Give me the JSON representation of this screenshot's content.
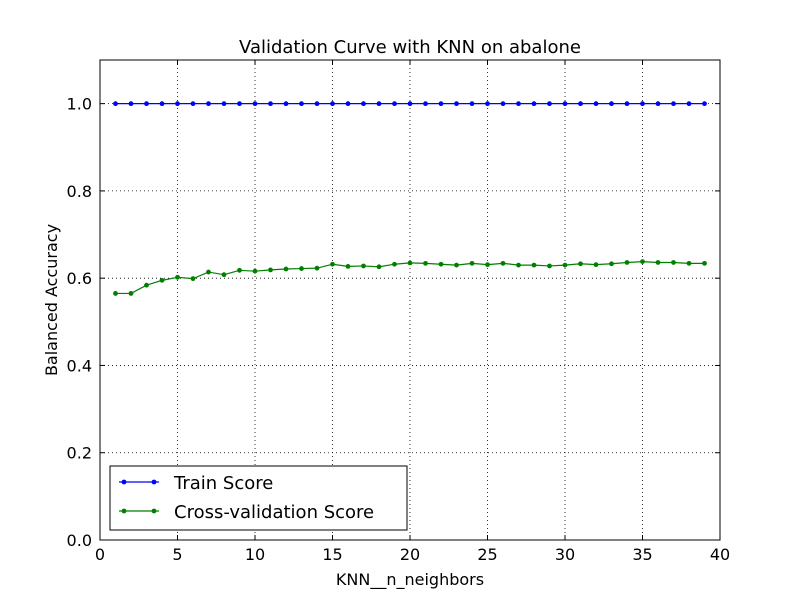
{
  "chart_data": {
    "type": "line",
    "title": "Validation Curve with KNN on abalone",
    "xlabel": "KNN__n_neighbors",
    "ylabel": "Balanced Accuracy",
    "xlim": [
      0,
      40
    ],
    "ylim": [
      0.0,
      1.1
    ],
    "x_ticks": [
      0,
      5,
      10,
      15,
      20,
      25,
      30,
      35,
      40
    ],
    "x_tick_labels": [
      "0",
      "5",
      "10",
      "15",
      "20",
      "25",
      "30",
      "35",
      "40"
    ],
    "y_ticks": [
      0.0,
      0.2,
      0.4,
      0.6,
      0.8,
      1.0
    ],
    "y_tick_labels": [
      "0.0",
      "0.2",
      "0.4",
      "0.6",
      "0.8",
      "1.0"
    ],
    "grid": true,
    "legend_position": "lower-left",
    "x": [
      1,
      2,
      3,
      4,
      5,
      6,
      7,
      8,
      9,
      10,
      11,
      12,
      13,
      14,
      15,
      16,
      17,
      18,
      19,
      20,
      21,
      22,
      23,
      24,
      25,
      26,
      27,
      28,
      29,
      30,
      31,
      32,
      33,
      34,
      35,
      36,
      37,
      38,
      39
    ],
    "series": [
      {
        "name": "Train Score",
        "color": "#0000ff",
        "values": [
          1.0,
          1.0,
          1.0,
          1.0,
          1.0,
          1.0,
          1.0,
          1.0,
          1.0,
          1.0,
          1.0,
          1.0,
          1.0,
          1.0,
          1.0,
          1.0,
          1.0,
          1.0,
          1.0,
          1.0,
          1.0,
          1.0,
          1.0,
          1.0,
          1.0,
          1.0,
          1.0,
          1.0,
          1.0,
          1.0,
          1.0,
          1.0,
          1.0,
          1.0,
          1.0,
          1.0,
          1.0,
          1.0,
          1.0
        ]
      },
      {
        "name": "Cross-validation Score",
        "color": "#008000",
        "values": [
          0.565,
          0.565,
          0.584,
          0.595,
          0.602,
          0.599,
          0.614,
          0.608,
          0.618,
          0.616,
          0.619,
          0.621,
          0.622,
          0.623,
          0.632,
          0.627,
          0.628,
          0.626,
          0.632,
          0.635,
          0.634,
          0.632,
          0.63,
          0.634,
          0.631,
          0.634,
          0.63,
          0.63,
          0.628,
          0.63,
          0.633,
          0.631,
          0.633,
          0.636,
          0.638,
          0.636,
          0.636,
          0.634,
          0.634
        ]
      }
    ]
  }
}
